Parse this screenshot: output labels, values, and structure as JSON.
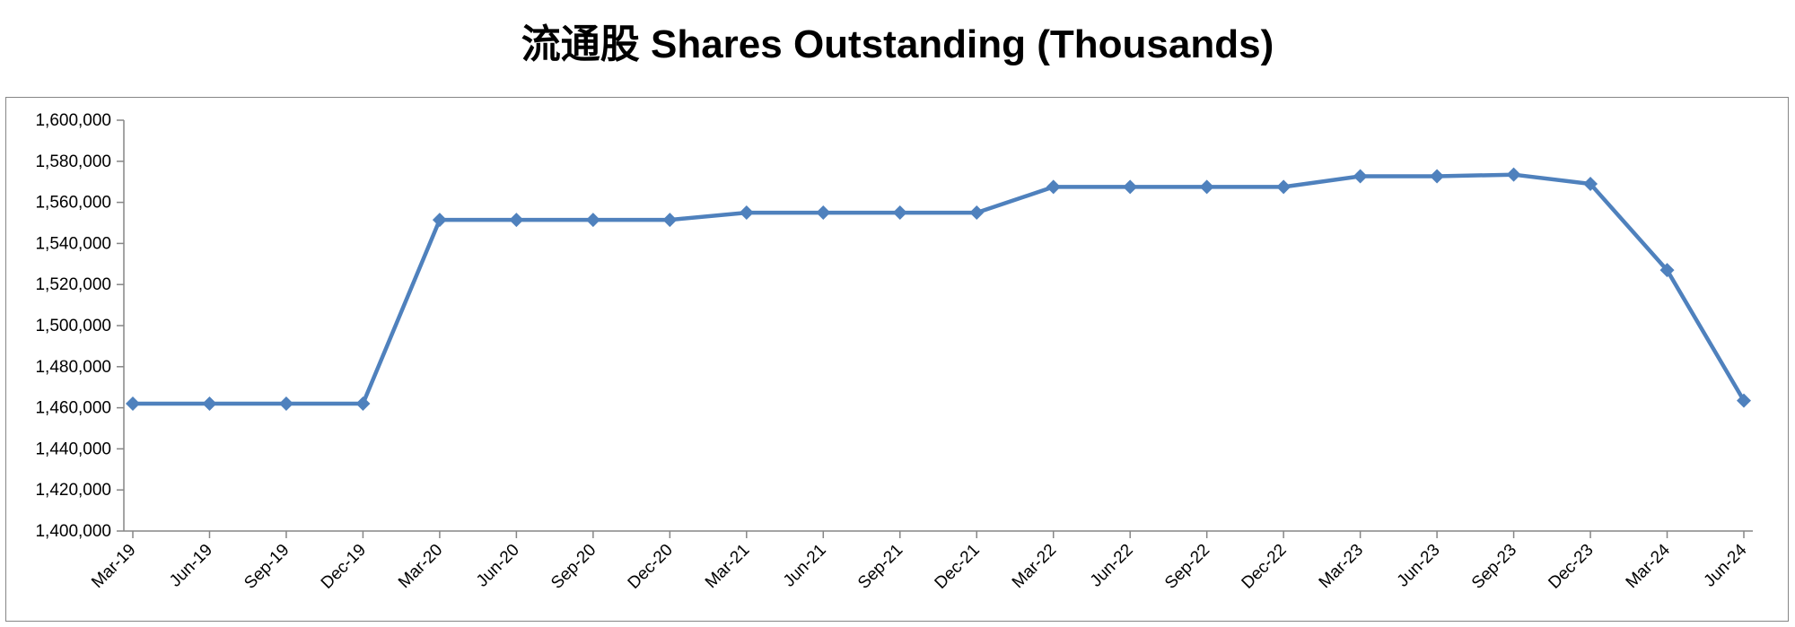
{
  "chart_data": {
    "type": "line",
    "title": "流通股 Shares Outstanding (Thousands)",
    "xlabel": "",
    "ylabel": "",
    "categories": [
      "Mar-19",
      "Jun-19",
      "Sep-19",
      "Dec-19",
      "Mar-20",
      "Jun-20",
      "Sep-20",
      "Dec-20",
      "Mar-21",
      "Jun-21",
      "Sep-21",
      "Dec-21",
      "Mar-22",
      "Jun-22",
      "Sep-22",
      "Dec-22",
      "Mar-23",
      "Jun-23",
      "Sep-23",
      "Dec-23",
      "Mar-24",
      "Jun-24"
    ],
    "series": [
      {
        "values": [
          1462000,
          1462000,
          1462000,
          1462000,
          1551500,
          1551500,
          1551500,
          1551500,
          1555000,
          1555000,
          1555000,
          1555000,
          1567500,
          1567500,
          1567500,
          1567500,
          1572700,
          1572700,
          1573500,
          1569000,
          1527000,
          1463500
        ]
      }
    ],
    "ylim": [
      1400000,
      1600000
    ],
    "yticks": [
      1400000,
      1420000,
      1440000,
      1460000,
      1480000,
      1500000,
      1520000,
      1540000,
      1560000,
      1580000,
      1600000
    ],
    "ytick_labels": [
      "1,400,000",
      "1,420,000",
      "1,440,000",
      "1,460,000",
      "1,480,000",
      "1,500,000",
      "1,520,000",
      "1,540,000",
      "1,560,000",
      "1,580,000",
      "1,600,000"
    ],
    "grid": false,
    "legend": "none",
    "line_color": "#4F81BD",
    "marker": "diamond"
  }
}
